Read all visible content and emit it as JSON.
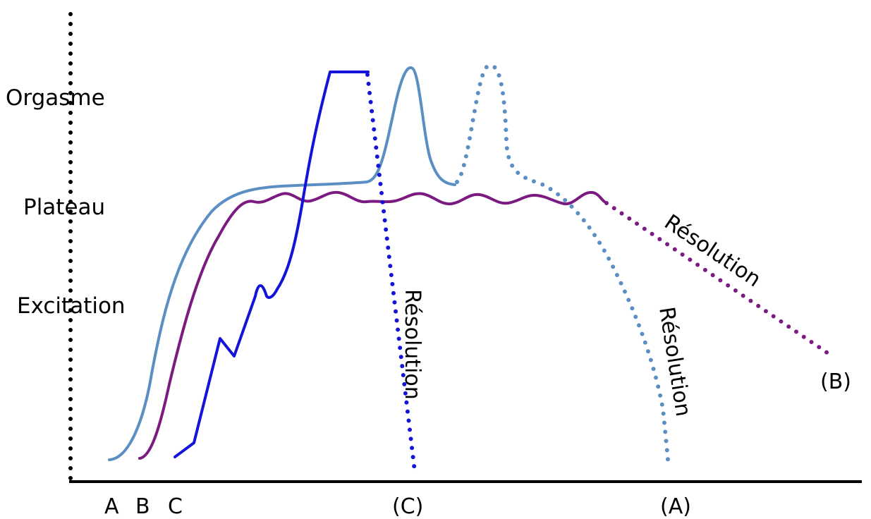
{
  "phases": {
    "orgasm": "Orgasme",
    "plateau": "Plateau",
    "excitation": "Excitation"
  },
  "x_axis": {
    "start_labels": [
      "A",
      "B",
      "C"
    ],
    "end_labels": {
      "c": "(C)",
      "a": "(A)"
    }
  },
  "curves": {
    "a": {
      "end_label": "(A)",
      "resolution_label": "Résolution",
      "color": "#5b8fc4"
    },
    "b": {
      "end_label": "(B)",
      "resolution_label": "Résolution",
      "color": "#7b1a80"
    },
    "c": {
      "end_label": "(C)",
      "resolution_label": "Résolution",
      "color": "#1414d8"
    }
  }
}
